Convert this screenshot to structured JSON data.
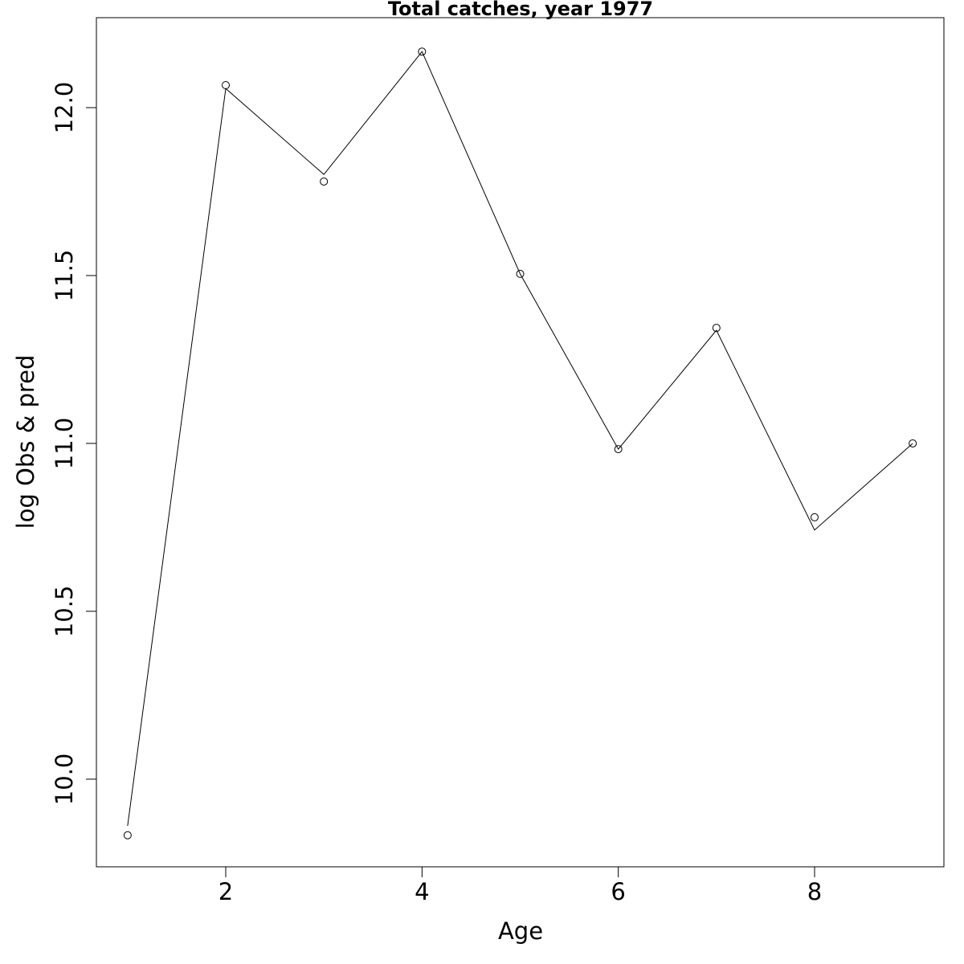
{
  "chart_data": {
    "type": "line",
    "title": "Total catches, year 1977",
    "x_label": "Age",
    "y_label": "log Obs & pred",
    "x": [
      1,
      2,
      3,
      4,
      5,
      6,
      7,
      8,
      9
    ],
    "series": [
      {
        "values": [
          9.833,
          12.067,
          11.78,
          12.167,
          11.505,
          10.983,
          11.344,
          10.78,
          11.0
        ],
        "marker": "circle",
        "color": "#000000"
      },
      {
        "values": [
          9.861,
          12.057,
          11.801,
          12.167,
          11.505,
          10.983,
          11.337,
          10.742,
          11.0
        ],
        "marker": "line",
        "color": "#000000"
      }
    ],
    "xlim": [
      0.682,
      9.318
    ],
    "ylim": [
      9.739,
      12.268
    ],
    "xticks": [
      2,
      4,
      6,
      8
    ],
    "yticks": [
      {
        "value": 10,
        "label": "10.0"
      },
      {
        "value": 10.5,
        "label": "10.5"
      },
      {
        "value": 11,
        "label": "11.0"
      },
      {
        "value": 11.5,
        "label": "11.5"
      },
      {
        "value": 12,
        "label": "12.0"
      }
    ]
  }
}
